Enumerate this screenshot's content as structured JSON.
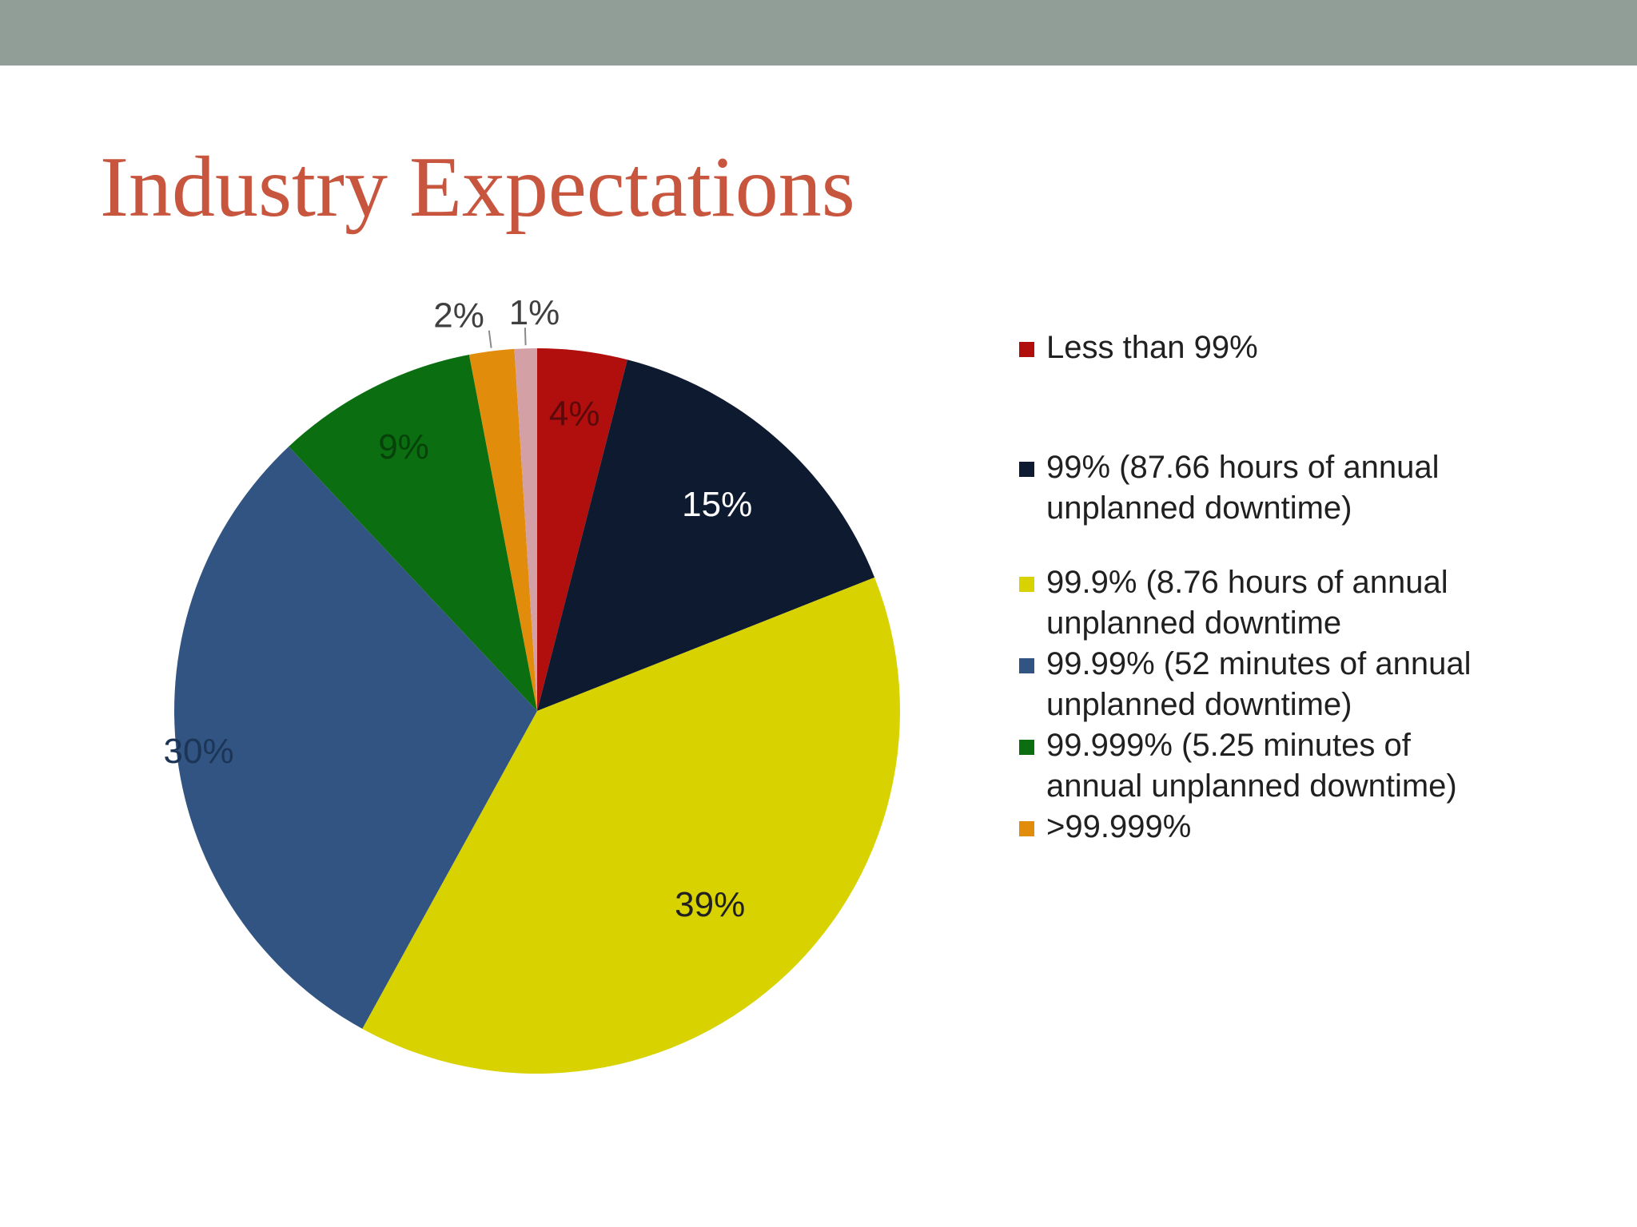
{
  "title": "Industry Expectations",
  "colors": {
    "top_band": "#919e97",
    "title": "#c8553d"
  },
  "chart_data": {
    "type": "pie",
    "title": "",
    "legend_position": "right",
    "slices": [
      {
        "name": "Less than 99%",
        "value": 4,
        "label": "4%",
        "color": "#b10e0e"
      },
      {
        "name": "99% (87.66 hours of annual unplanned downtime)",
        "value": 15,
        "label": "15%",
        "color": "#0e1a30"
      },
      {
        "name": "99.9% (8.76 hours of annual unplanned downtime",
        "value": 39,
        "label": "39%",
        "color": "#d8d200"
      },
      {
        "name": "99.99% (52 minutes of annual unplanned downtime)",
        "value": 30,
        "label": "30%",
        "color": "#315482"
      },
      {
        "name": "99.999% (5.25 minutes of annual unplanned downtime)",
        "value": 9,
        "label": "9%",
        "color": "#0b6e10"
      },
      {
        "name": ">99.999%",
        "value": 2,
        "label": "2%",
        "color": "#e28c0b"
      },
      {
        "name": "",
        "value": 1,
        "label": "1%",
        "color": "#d3a0a6"
      }
    ]
  }
}
